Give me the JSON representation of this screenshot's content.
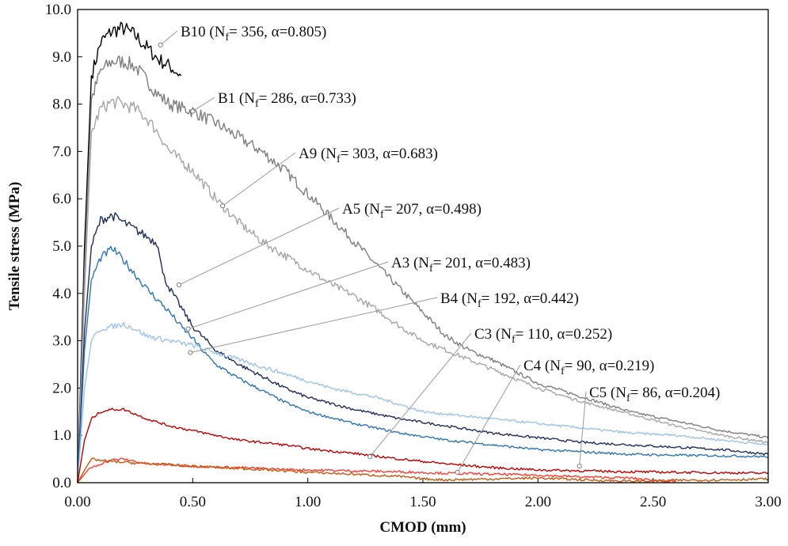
{
  "chart_data": {
    "type": "line",
    "title": "",
    "xlabel": "CMOD (mm)",
    "ylabel": "Tensile stress (MPa)",
    "xlim": [
      0,
      3.0
    ],
    "ylim": [
      0,
      10.0
    ],
    "x_ticks": [
      "0.00",
      "0.50",
      "1.00",
      "1.50",
      "2.00",
      "2.50",
      "3.00"
    ],
    "y_ticks": [
      "0.0",
      "1.0",
      "2.0",
      "3.0",
      "4.0",
      "5.0",
      "6.0",
      "7.0",
      "8.0",
      "9.0",
      "10.0"
    ],
    "grid": false,
    "legend": "none",
    "series": [
      {
        "id": "B10",
        "label": "B10",
        "nf": "356",
        "alpha": "0.805",
        "color": "#000000",
        "points": [
          [
            0,
            0
          ],
          [
            0.03,
            5.0
          ],
          [
            0.06,
            8.6
          ],
          [
            0.1,
            9.3
          ],
          [
            0.15,
            9.55
          ],
          [
            0.2,
            9.6
          ],
          [
            0.25,
            9.45
          ],
          [
            0.3,
            9.2
          ],
          [
            0.35,
            8.95
          ],
          [
            0.4,
            8.8
          ],
          [
            0.45,
            8.6
          ]
        ],
        "anchor": [
          0.36,
          9.25
        ]
      },
      {
        "id": "B1",
        "label": "B1",
        "nf": "286",
        "alpha": "0.733",
        "color": "#7f7f7f",
        "points": [
          [
            0,
            0
          ],
          [
            0.03,
            4.5
          ],
          [
            0.06,
            8.1
          ],
          [
            0.1,
            8.7
          ],
          [
            0.15,
            8.9
          ],
          [
            0.2,
            8.9
          ],
          [
            0.25,
            8.8
          ],
          [
            0.3,
            8.5
          ],
          [
            0.35,
            8.2
          ],
          [
            0.4,
            8.0
          ],
          [
            0.5,
            7.85
          ],
          [
            0.6,
            7.6
          ],
          [
            0.7,
            7.3
          ],
          [
            0.8,
            7.0
          ],
          [
            0.9,
            6.6
          ],
          [
            1.0,
            6.1
          ],
          [
            1.1,
            5.6
          ],
          [
            1.2,
            5.1
          ],
          [
            1.3,
            4.6
          ],
          [
            1.4,
            4.1
          ],
          [
            1.5,
            3.6
          ],
          [
            1.6,
            3.1
          ],
          [
            1.7,
            2.8
          ],
          [
            1.8,
            2.6
          ],
          [
            1.9,
            2.35
          ],
          [
            2.0,
            2.1
          ],
          [
            2.2,
            1.8
          ],
          [
            2.4,
            1.5
          ],
          [
            2.6,
            1.3
          ],
          [
            2.8,
            1.1
          ],
          [
            3.0,
            0.95
          ]
        ],
        "anchor": [
          0.5,
          7.85
        ]
      },
      {
        "id": "A9",
        "label": "A9",
        "nf": "303",
        "alpha": "0.683",
        "color": "#a6a6a6",
        "points": [
          [
            0,
            0
          ],
          [
            0.03,
            4.0
          ],
          [
            0.06,
            7.4
          ],
          [
            0.1,
            7.9
          ],
          [
            0.15,
            8.05
          ],
          [
            0.2,
            8.0
          ],
          [
            0.25,
            7.9
          ],
          [
            0.3,
            7.7
          ],
          [
            0.35,
            7.4
          ],
          [
            0.4,
            7.0
          ],
          [
            0.5,
            6.6
          ],
          [
            0.6,
            6.0
          ],
          [
            0.7,
            5.5
          ],
          [
            0.8,
            5.1
          ],
          [
            0.9,
            4.8
          ],
          [
            1.0,
            4.5
          ],
          [
            1.1,
            4.2
          ],
          [
            1.2,
            3.95
          ],
          [
            1.3,
            3.65
          ],
          [
            1.4,
            3.3
          ],
          [
            1.5,
            3.0
          ],
          [
            1.6,
            2.8
          ],
          [
            1.7,
            2.6
          ],
          [
            1.8,
            2.4
          ],
          [
            1.9,
            2.2
          ],
          [
            2.0,
            2.0
          ],
          [
            2.2,
            1.7
          ],
          [
            2.4,
            1.45
          ],
          [
            2.6,
            1.2
          ],
          [
            2.8,
            1.0
          ],
          [
            3.0,
            0.85
          ]
        ],
        "anchor": [
          0.63,
          5.85
        ]
      },
      {
        "id": "A5",
        "label": "A5",
        "nf": "207",
        "alpha": "0.498",
        "color": "#1f2d5c",
        "points": [
          [
            0,
            0
          ],
          [
            0.03,
            3.2
          ],
          [
            0.06,
            5.0
          ],
          [
            0.1,
            5.55
          ],
          [
            0.15,
            5.65
          ],
          [
            0.2,
            5.5
          ],
          [
            0.25,
            5.35
          ],
          [
            0.3,
            5.2
          ],
          [
            0.35,
            5.05
          ],
          [
            0.37,
            4.4
          ],
          [
            0.4,
            4.1
          ],
          [
            0.45,
            3.7
          ],
          [
            0.5,
            3.3
          ],
          [
            0.55,
            3.05
          ],
          [
            0.6,
            2.8
          ],
          [
            0.7,
            2.5
          ],
          [
            0.8,
            2.25
          ],
          [
            0.9,
            2.0
          ],
          [
            1.0,
            1.8
          ],
          [
            1.2,
            1.55
          ],
          [
            1.4,
            1.35
          ],
          [
            1.6,
            1.2
          ],
          [
            1.8,
            1.05
          ],
          [
            2.0,
            0.95
          ],
          [
            2.2,
            0.85
          ],
          [
            2.4,
            0.8
          ],
          [
            2.6,
            0.75
          ],
          [
            2.8,
            0.7
          ],
          [
            3.0,
            0.6
          ]
        ],
        "anchor": [
          0.44,
          4.18
        ]
      },
      {
        "id": "A3",
        "label": "A3",
        "nf": "201",
        "alpha": "0.483",
        "color": "#2e75b6",
        "points": [
          [
            0,
            0
          ],
          [
            0.03,
            2.8
          ],
          [
            0.06,
            4.3
          ],
          [
            0.1,
            4.75
          ],
          [
            0.15,
            4.95
          ],
          [
            0.2,
            4.7
          ],
          [
            0.25,
            4.4
          ],
          [
            0.3,
            4.1
          ],
          [
            0.35,
            3.85
          ],
          [
            0.4,
            3.6
          ],
          [
            0.45,
            3.3
          ],
          [
            0.5,
            3.05
          ],
          [
            0.55,
            2.75
          ],
          [
            0.6,
            2.5
          ],
          [
            0.7,
            2.2
          ],
          [
            0.8,
            1.95
          ],
          [
            0.9,
            1.7
          ],
          [
            1.0,
            1.5
          ],
          [
            1.2,
            1.25
          ],
          [
            1.4,
            1.05
          ],
          [
            1.6,
            0.9
          ],
          [
            1.8,
            0.8
          ],
          [
            2.0,
            0.7
          ],
          [
            2.2,
            0.65
          ],
          [
            2.4,
            0.6
          ],
          [
            2.6,
            0.58
          ],
          [
            2.8,
            0.57
          ],
          [
            3.0,
            0.55
          ]
        ],
        "anchor": [
          0.48,
          3.25
        ]
      },
      {
        "id": "B4",
        "label": "B4",
        "nf": "192",
        "alpha": "0.442",
        "color": "#9dc3e6",
        "points": [
          [
            0,
            0
          ],
          [
            0.03,
            2.0
          ],
          [
            0.06,
            3.0
          ],
          [
            0.1,
            3.25
          ],
          [
            0.15,
            3.3
          ],
          [
            0.2,
            3.35
          ],
          [
            0.25,
            3.25
          ],
          [
            0.3,
            3.1
          ],
          [
            0.4,
            3.0
          ],
          [
            0.5,
            2.9
          ],
          [
            0.6,
            2.75
          ],
          [
            0.7,
            2.6
          ],
          [
            0.8,
            2.45
          ],
          [
            0.9,
            2.3
          ],
          [
            1.0,
            2.15
          ],
          [
            1.1,
            2.0
          ],
          [
            1.2,
            1.9
          ],
          [
            1.3,
            1.8
          ],
          [
            1.4,
            1.65
          ],
          [
            1.5,
            1.5
          ],
          [
            1.6,
            1.45
          ],
          [
            1.7,
            1.4
          ],
          [
            1.8,
            1.35
          ],
          [
            2.0,
            1.25
          ],
          [
            2.2,
            1.15
          ],
          [
            2.4,
            1.05
          ],
          [
            2.6,
            1.0
          ],
          [
            2.8,
            0.9
          ],
          [
            3.0,
            0.8
          ]
        ],
        "anchor": [
          0.49,
          2.75
        ]
      },
      {
        "id": "C3",
        "label": "C3",
        "nf": "110",
        "alpha": "0.252",
        "color": "#c00000",
        "points": [
          [
            0,
            0
          ],
          [
            0.03,
            0.9
          ],
          [
            0.06,
            1.35
          ],
          [
            0.1,
            1.5
          ],
          [
            0.15,
            1.55
          ],
          [
            0.2,
            1.55
          ],
          [
            0.25,
            1.45
          ],
          [
            0.3,
            1.35
          ],
          [
            0.4,
            1.2
          ],
          [
            0.5,
            1.1
          ],
          [
            0.6,
            1.0
          ],
          [
            0.7,
            0.9
          ],
          [
            0.8,
            0.85
          ],
          [
            0.9,
            0.8
          ],
          [
            1.0,
            0.72
          ],
          [
            1.2,
            0.62
          ],
          [
            1.4,
            0.5
          ],
          [
            1.6,
            0.4
          ],
          [
            1.8,
            0.32
          ],
          [
            2.0,
            0.27
          ],
          [
            2.2,
            0.25
          ],
          [
            2.4,
            0.23
          ],
          [
            2.6,
            0.22
          ],
          [
            2.8,
            0.21
          ],
          [
            3.0,
            0.2
          ]
        ],
        "anchor": [
          1.27,
          0.55
        ]
      },
      {
        "id": "C4",
        "label": "C4",
        "nf": "90",
        "alpha": "0.219",
        "color": "#ff3b30",
        "points": [
          [
            0,
            0
          ],
          [
            0.05,
            0.3
          ],
          [
            0.1,
            0.4
          ],
          [
            0.15,
            0.48
          ],
          [
            0.2,
            0.5
          ],
          [
            0.25,
            0.45
          ],
          [
            0.3,
            0.4
          ],
          [
            0.4,
            0.38
          ],
          [
            0.5,
            0.35
          ],
          [
            0.6,
            0.33
          ],
          [
            0.7,
            0.32
          ],
          [
            0.8,
            0.3
          ],
          [
            0.9,
            0.28
          ],
          [
            1.0,
            0.27
          ],
          [
            1.2,
            0.25
          ],
          [
            1.4,
            0.23
          ],
          [
            1.6,
            0.2
          ],
          [
            1.8,
            0.18
          ],
          [
            2.0,
            0.16
          ],
          [
            2.2,
            0.12
          ],
          [
            2.4,
            0.1
          ],
          [
            2.5,
            0.05
          ],
          [
            2.6,
            0.02
          ]
        ],
        "anchor": [
          1.65,
          0.22
        ]
      },
      {
        "id": "C5",
        "label": "C5",
        "nf": "86",
        "alpha": "0.204",
        "color": "#c55a11",
        "points": [
          [
            0,
            0
          ],
          [
            0.04,
            0.35
          ],
          [
            0.06,
            0.5
          ],
          [
            0.1,
            0.47
          ],
          [
            0.15,
            0.45
          ],
          [
            0.2,
            0.43
          ],
          [
            0.3,
            0.4
          ],
          [
            0.4,
            0.38
          ],
          [
            0.5,
            0.35
          ],
          [
            0.6,
            0.32
          ],
          [
            0.7,
            0.3
          ],
          [
            0.8,
            0.28
          ],
          [
            0.9,
            0.25
          ],
          [
            1.0,
            0.22
          ],
          [
            1.2,
            0.18
          ],
          [
            1.4,
            0.13
          ],
          [
            1.5,
            0.08
          ],
          [
            1.6,
            0.06
          ],
          [
            1.8,
            0.08
          ],
          [
            2.0,
            0.1
          ],
          [
            2.2,
            0.06
          ],
          [
            2.4,
            0.03
          ],
          [
            2.6,
            0.05
          ],
          [
            2.8,
            0.06
          ],
          [
            3.0,
            0.08
          ]
        ],
        "anchor": [
          2.18,
          0.35
        ]
      }
    ]
  }
}
